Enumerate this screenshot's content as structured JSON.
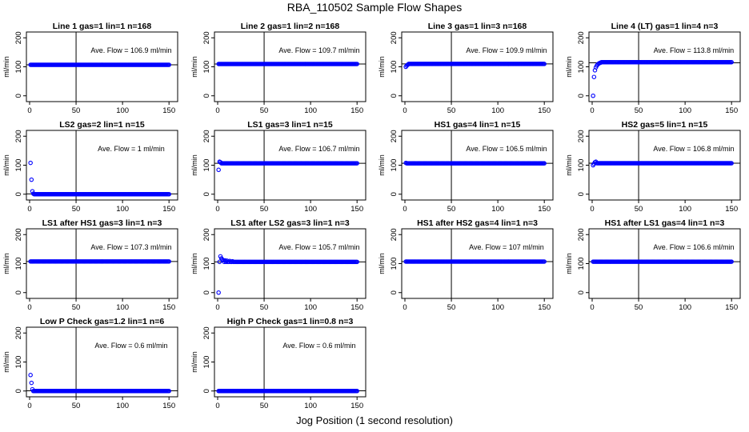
{
  "figure": {
    "title": "RBA_110502  Sample Flow Shapes",
    "xlabel": "Jog Position (1 second resolution)"
  },
  "colors": {
    "points": "#0000ff",
    "axis": "#000000"
  },
  "chart_data": [
    {
      "type": "scatter",
      "title": "Line 1 gas=1 lin=1 n=168",
      "annotation": "Ave. Flow = 106.9  ml/min",
      "ylabel": "ml/min",
      "xlim": [
        0,
        155
      ],
      "ylim": [
        -20,
        220
      ],
      "xticks": [
        0,
        50,
        100,
        150
      ],
      "yticks": [
        0,
        100,
        200
      ],
      "vline_x": 50,
      "hline_y": 106.9,
      "x_range": [
        1,
        150
      ],
      "y_steady": 106.9,
      "start_points": []
    },
    {
      "type": "scatter",
      "title": "Line 2 gas=1 lin=2 n=168",
      "annotation": "Ave. Flow = 109.7  ml/min",
      "ylabel": "ml/min",
      "xlim": [
        0,
        155
      ],
      "ylim": [
        -20,
        220
      ],
      "xticks": [
        0,
        50,
        100,
        150
      ],
      "yticks": [
        0,
        100,
        200
      ],
      "vline_x": 50,
      "hline_y": 109.7,
      "x_range": [
        1,
        150
      ],
      "y_steady": 109.7,
      "start_points": []
    },
    {
      "type": "scatter",
      "title": "Line 3 gas=1 lin=3 n=168",
      "annotation": "Ave. Flow = 109.9  ml/min",
      "ylabel": "ml/min",
      "xlim": [
        0,
        155
      ],
      "ylim": [
        -20,
        220
      ],
      "xticks": [
        0,
        50,
        100,
        150
      ],
      "yticks": [
        0,
        100,
        200
      ],
      "vline_x": 50,
      "hline_y": 109.9,
      "x_range": [
        1,
        150
      ],
      "y_steady": 109.9,
      "start_points": [
        [
          1,
          100
        ],
        [
          2,
          104
        ],
        [
          3,
          107
        ]
      ]
    },
    {
      "type": "scatter",
      "title": "Line 4 (LT) gas=1 lin=4 n=3",
      "annotation": "Ave. Flow = 113.8  ml/min",
      "ylabel": "ml/min",
      "xlim": [
        0,
        155
      ],
      "ylim": [
        -20,
        220
      ],
      "xticks": [
        0,
        50,
        100,
        150
      ],
      "yticks": [
        0,
        100,
        200
      ],
      "vline_x": 50,
      "hline_y": 113.8,
      "x_range": [
        1,
        150
      ],
      "y_steady": 116,
      "start_points": [
        [
          1,
          0
        ],
        [
          2,
          65
        ],
        [
          3,
          88
        ],
        [
          4,
          98
        ],
        [
          5,
          104
        ],
        [
          6,
          108
        ],
        [
          7,
          111
        ],
        [
          8,
          113
        ],
        [
          9,
          114
        ]
      ]
    },
    {
      "type": "scatter",
      "title": "LS2 gas=2 lin=1 n=15",
      "annotation": "Ave. Flow = 1  ml/min",
      "ylabel": "ml/min",
      "xlim": [
        0,
        155
      ],
      "ylim": [
        -20,
        220
      ],
      "xticks": [
        0,
        50,
        100,
        150
      ],
      "yticks": [
        0,
        100,
        200
      ],
      "vline_x": 50,
      "hline_y": 1,
      "x_range": [
        1,
        150
      ],
      "y_steady": 0,
      "start_points": [
        [
          1,
          108
        ],
        [
          2,
          50
        ],
        [
          3,
          10
        ],
        [
          4,
          2
        ]
      ]
    },
    {
      "type": "scatter",
      "title": "LS1 gas=3 lin=1 n=15",
      "annotation": "Ave. Flow = 106.7  ml/min",
      "ylabel": "ml/min",
      "xlim": [
        0,
        155
      ],
      "ylim": [
        -20,
        220
      ],
      "xticks": [
        0,
        50,
        100,
        150
      ],
      "yticks": [
        0,
        100,
        200
      ],
      "vline_x": 50,
      "hline_y": 106.7,
      "x_range": [
        1,
        150
      ],
      "y_steady": 106.7,
      "start_points": [
        [
          1,
          84
        ],
        [
          2,
          112
        ],
        [
          3,
          110
        ]
      ]
    },
    {
      "type": "scatter",
      "title": "HS1 gas=4 lin=1 n=15",
      "annotation": "Ave. Flow = 106.5  ml/min",
      "ylabel": "ml/min",
      "xlim": [
        0,
        155
      ],
      "ylim": [
        -20,
        220
      ],
      "xticks": [
        0,
        50,
        100,
        150
      ],
      "yticks": [
        0,
        100,
        200
      ],
      "vline_x": 50,
      "hline_y": 106.5,
      "x_range": [
        1,
        150
      ],
      "y_steady": 106.5,
      "start_points": [
        [
          1,
          108
        ]
      ]
    },
    {
      "type": "scatter",
      "title": "HS2 gas=5 lin=1 n=15",
      "annotation": "Ave. Flow = 106.8  ml/min",
      "ylabel": "ml/min",
      "xlim": [
        0,
        155
      ],
      "ylim": [
        -20,
        220
      ],
      "xticks": [
        0,
        50,
        100,
        150
      ],
      "yticks": [
        0,
        100,
        200
      ],
      "vline_x": 50,
      "hline_y": 106.8,
      "x_range": [
        1,
        150
      ],
      "y_steady": 106.8,
      "start_points": [
        [
          1,
          100
        ],
        [
          2,
          105
        ],
        [
          3,
          110
        ],
        [
          4,
          112
        ]
      ]
    },
    {
      "type": "scatter",
      "title": "LS1 after HS1 gas=3 lin=1 n=3",
      "annotation": "Ave. Flow = 107.3  ml/min",
      "ylabel": "ml/min",
      "xlim": [
        0,
        155
      ],
      "ylim": [
        -20,
        220
      ],
      "xticks": [
        0,
        50,
        100,
        150
      ],
      "yticks": [
        0,
        100,
        200
      ],
      "vline_x": 50,
      "hline_y": 107.3,
      "x_range": [
        1,
        150
      ],
      "y_steady": 107.3,
      "start_points": []
    },
    {
      "type": "scatter",
      "title": "LS1 after LS2 gas=3 lin=1 n=3",
      "annotation": "Ave. Flow = 105.7  ml/min",
      "ylabel": "ml/min",
      "xlim": [
        0,
        155
      ],
      "ylim": [
        -20,
        220
      ],
      "xticks": [
        0,
        50,
        100,
        150
      ],
      "yticks": [
        0,
        100,
        200
      ],
      "vline_x": 50,
      "hline_y": 105.7,
      "x_range": [
        1,
        150
      ],
      "y_steady": 106,
      "start_points": [
        [
          1,
          0
        ],
        [
          3,
          125
        ],
        [
          4,
          118
        ],
        [
          5,
          114
        ],
        [
          6,
          112
        ],
        [
          8,
          111
        ],
        [
          10,
          110
        ],
        [
          13,
          109
        ],
        [
          16,
          108
        ]
      ]
    },
    {
      "type": "scatter",
      "title": "HS1 after HS2 gas=4 lin=1 n=3",
      "annotation": "Ave. Flow = 107  ml/min",
      "ylabel": "ml/min",
      "xlim": [
        0,
        155
      ],
      "ylim": [
        -20,
        220
      ],
      "xticks": [
        0,
        50,
        100,
        150
      ],
      "yticks": [
        0,
        100,
        200
      ],
      "vline_x": 50,
      "hline_y": 107,
      "x_range": [
        1,
        150
      ],
      "y_steady": 107,
      "start_points": []
    },
    {
      "type": "scatter",
      "title": "HS1 after LS1 gas=4 lin=1 n=3",
      "annotation": "Ave. Flow = 106.6  ml/min",
      "ylabel": "ml/min",
      "xlim": [
        0,
        155
      ],
      "ylim": [
        -20,
        220
      ],
      "xticks": [
        0,
        50,
        100,
        150
      ],
      "yticks": [
        0,
        100,
        200
      ],
      "vline_x": 50,
      "hline_y": 106.6,
      "x_range": [
        1,
        150
      ],
      "y_steady": 106.6,
      "start_points": []
    },
    {
      "type": "scatter",
      "title": "Low P Check gas=1.2 lin=1 n=6",
      "annotation": "Ave. Flow = 0.6  ml/min",
      "ylabel": "ml/min",
      "xlim": [
        0,
        155
      ],
      "ylim": [
        -20,
        220
      ],
      "xticks": [
        0,
        50,
        100,
        150
      ],
      "yticks": [
        0,
        100,
        200
      ],
      "vline_x": 50,
      "hline_y": 0.6,
      "x_range": [
        1,
        150
      ],
      "y_steady": 0,
      "start_points": [
        [
          1,
          55
        ],
        [
          2,
          28
        ],
        [
          3,
          6
        ]
      ]
    },
    {
      "type": "scatter",
      "title": "High P Check gas=1 lin=0.8 n=3",
      "annotation": "Ave. Flow = 0.6  ml/min",
      "ylabel": "ml/min",
      "xlim": [
        0,
        155
      ],
      "ylim": [
        -20,
        220
      ],
      "xticks": [
        0,
        50,
        100,
        150
      ],
      "yticks": [
        0,
        100,
        200
      ],
      "vline_x": 50,
      "hline_y": 0.6,
      "x_range": [
        1,
        150
      ],
      "y_steady": 0,
      "start_points": []
    }
  ]
}
